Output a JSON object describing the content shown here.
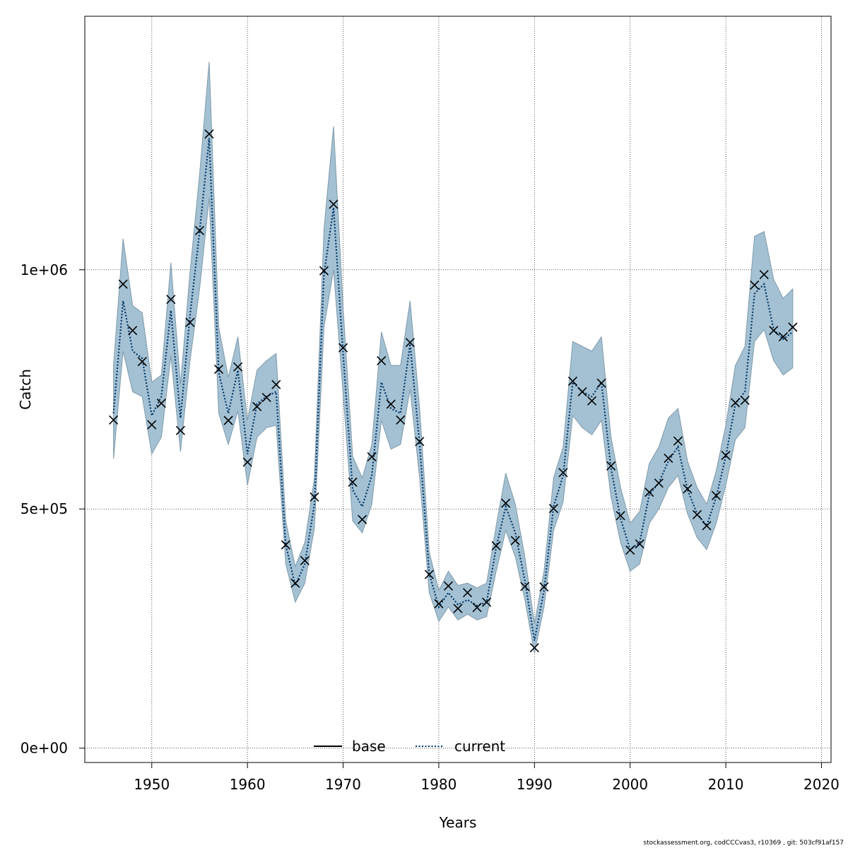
{
  "chart_data": {
    "type": "line",
    "xlabel": "Years",
    "ylabel": "Catch",
    "xlim": [
      1943,
      2021
    ],
    "ylim": [
      -30000,
      1530000
    ],
    "x_ticks": [
      1950,
      1960,
      1970,
      1980,
      1990,
      2000,
      2010,
      2020
    ],
    "y_ticks": [
      0,
      500000,
      1000000
    ],
    "y_tick_labels": [
      "0e+00",
      "5e+05",
      "1e+06"
    ],
    "grid": true,
    "legend": {
      "placement": "bottom-center",
      "entries": [
        {
          "label": "base",
          "style": "solid",
          "color": "#000000"
        },
        {
          "label": "current",
          "style": "dotted",
          "color": "#003366"
        }
      ]
    },
    "colors": {
      "band": "#a3c1d3",
      "band_edge": "#7f9aab",
      "line": "#003366",
      "marker": "#000000"
    },
    "x": [
      1946,
      1947,
      1948,
      1949,
      1950,
      1951,
      1952,
      1953,
      1954,
      1955,
      1956,
      1957,
      1958,
      1959,
      1960,
      1961,
      1962,
      1963,
      1964,
      1965,
      1966,
      1967,
      1968,
      1969,
      1970,
      1971,
      1972,
      1973,
      1974,
      1975,
      1976,
      1977,
      1978,
      1979,
      1980,
      1981,
      1982,
      1983,
      1984,
      1985,
      1986,
      1987,
      1988,
      1989,
      1990,
      1991,
      1992,
      1993,
      1994,
      1995,
      1996,
      1997,
      1998,
      1999,
      2000,
      2001,
      2002,
      2003,
      2004,
      2005,
      2006,
      2007,
      2008,
      2009,
      2010,
      2011,
      2012,
      2013,
      2014,
      2015,
      2016,
      2017
    ],
    "observed": [
      686000,
      970000,
      873000,
      808000,
      676000,
      721000,
      938000,
      664000,
      890000,
      1082000,
      1284000,
      792000,
      685000,
      797000,
      598000,
      714000,
      733000,
      760000,
      425000,
      345000,
      392000,
      525000,
      998000,
      1137000,
      837000,
      556000,
      478000,
      609000,
      810000,
      719000,
      686000,
      848000,
      641000,
      363000,
      302000,
      339000,
      292000,
      325000,
      294000,
      305000,
      423000,
      512000,
      434000,
      338000,
      210000,
      337000,
      501000,
      576000,
      767000,
      745000,
      726000,
      763000,
      590000,
      486000,
      414000,
      427000,
      535000,
      554000,
      606000,
      642000,
      542000,
      488000,
      465000,
      528000,
      612000,
      722000,
      727000,
      968000,
      990000,
      873000,
      860000,
      880000
    ],
    "series": [
      {
        "name": "current",
        "values": [
          700000,
          935000,
          830000,
          815000,
          695000,
          735000,
          915000,
          690000,
          905000,
          1080000,
          1275000,
          785000,
          700000,
          790000,
          615000,
          720000,
          735000,
          745000,
          425000,
          340000,
          385000,
          510000,
          990000,
          1130000,
          825000,
          540000,
          505000,
          570000,
          765000,
          710000,
          700000,
          845000,
          635000,
          365000,
          295000,
          325000,
          300000,
          310000,
          298000,
          305000,
          420000,
          505000,
          450000,
          350000,
          225000,
          330000,
          505000,
          570000,
          765000,
          745000,
          735000,
          765000,
          585000,
          480000,
          415000,
          430000,
          530000,
          555000,
          600000,
          630000,
          540000,
          490000,
          465000,
          525000,
          610000,
          720000,
          745000,
          950000,
          970000,
          875000,
          855000,
          870000
        ],
        "lower": [
          605000,
          830000,
          745000,
          735000,
          615000,
          650000,
          820000,
          620000,
          810000,
          960000,
          1150000,
          700000,
          635000,
          705000,
          550000,
          650000,
          670000,
          675000,
          385000,
          305000,
          345000,
          460000,
          880000,
          1000000,
          740000,
          475000,
          450000,
          510000,
          685000,
          625000,
          635000,
          750000,
          565000,
          325000,
          265000,
          295000,
          268000,
          280000,
          268000,
          275000,
          370000,
          455000,
          400000,
          310000,
          198000,
          295000,
          455000,
          515000,
          695000,
          670000,
          655000,
          685000,
          525000,
          430000,
          370000,
          385000,
          470000,
          500000,
          545000,
          570000,
          490000,
          440000,
          415000,
          470000,
          550000,
          645000,
          670000,
          850000,
          875000,
          810000,
          780000,
          795000
        ],
        "upper": [
          800000,
          1065000,
          925000,
          910000,
          765000,
          780000,
          1015000,
          760000,
          995000,
          1200000,
          1435000,
          880000,
          775000,
          860000,
          685000,
          790000,
          810000,
          825000,
          475000,
          380000,
          430000,
          565000,
          1085000,
          1300000,
          920000,
          610000,
          565000,
          635000,
          870000,
          800000,
          800000,
          935000,
          710000,
          410000,
          330000,
          370000,
          340000,
          345000,
          335000,
          345000,
          465000,
          575000,
          510000,
          400000,
          260000,
          370000,
          565000,
          630000,
          850000,
          840000,
          830000,
          860000,
          650000,
          545000,
          470000,
          495000,
          595000,
          630000,
          690000,
          710000,
          600000,
          545000,
          510000,
          580000,
          675000,
          800000,
          840000,
          1070000,
          1080000,
          980000,
          940000,
          960000
        ]
      }
    ]
  },
  "footer": "stockassessment.org, codCCCvas3, r10369 , git: 503cf91af157"
}
